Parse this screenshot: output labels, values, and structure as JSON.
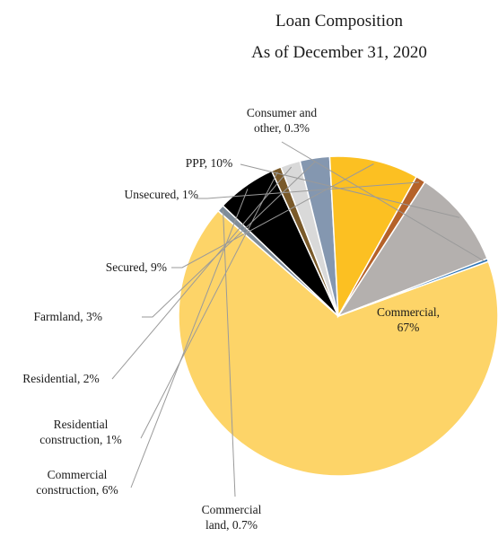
{
  "chart_data": {
    "type": "pie",
    "title": "Loan Composition",
    "subtitle": "As of December 31, 2020",
    "slices": [
      {
        "name": "Commercial",
        "label": "Commercial, 67%",
        "value": 67,
        "color": "#FDD468"
      },
      {
        "name": "Commercial land",
        "label": "Commercial land, 0.7%",
        "value": 0.7,
        "color": "#7F8C99"
      },
      {
        "name": "Commercial construction",
        "label": "Commercial construction, 6%",
        "value": 6,
        "color": "#000000"
      },
      {
        "name": "Residential construction",
        "label": "Residential construction, 1%",
        "value": 1,
        "color": "#7A5A2A"
      },
      {
        "name": "Residential",
        "label": "Residential, 2%",
        "value": 2,
        "color": "#D9D9D9"
      },
      {
        "name": "Farmland",
        "label": "Farmland, 3%",
        "value": 3,
        "color": "#8497B0"
      },
      {
        "name": "Secured",
        "label": "Secured, 9%",
        "value": 9,
        "color": "#FCC022"
      },
      {
        "name": "Unsecured",
        "label": "Unsecured, 1%",
        "value": 1,
        "color": "#B5622A"
      },
      {
        "name": "PPP",
        "label": "PPP, 10%",
        "value": 10,
        "color": "#B4B0AE"
      },
      {
        "name": "Consumer and other",
        "label": "Consumer and other, 0.3%",
        "value": 0.3,
        "color": "#2E75B6"
      }
    ]
  }
}
